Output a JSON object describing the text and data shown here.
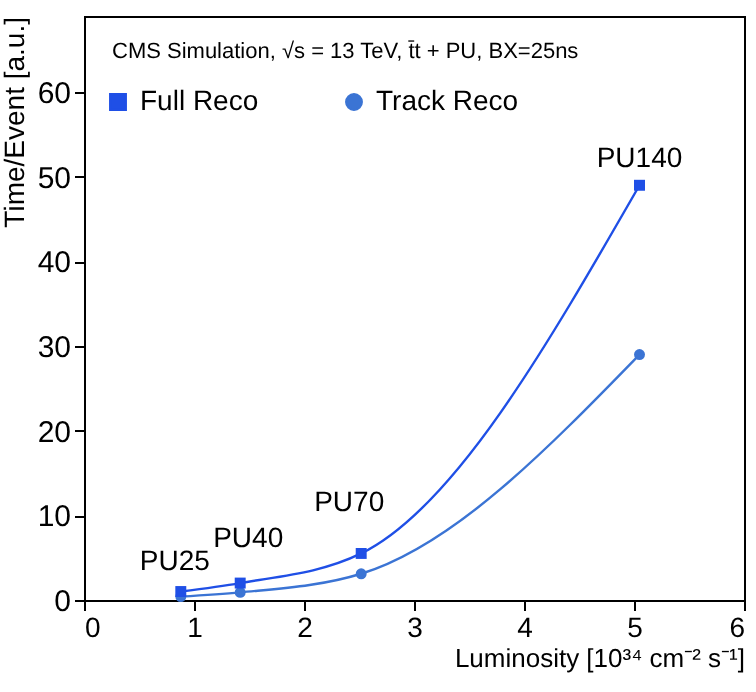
{
  "chart_data": {
    "type": "line",
    "xlabel": "Luminosity [10³⁴ cm⁻² s⁻¹]",
    "ylabel": "Time/Event [a.u.]",
    "annotations": [
      "CMS Simulation, √s = 13 TeV, t̄t + PU, BX=25ns",
      {
        "text": "PU25",
        "x": 0.88,
        "y": 1.0
      },
      {
        "text": "PU40",
        "x": 1.42,
        "y": 2.0
      },
      {
        "text": "PU70",
        "x": 2.52,
        "y": 5.5
      },
      {
        "text": "PU140",
        "x": 5.05,
        "y": 49
      }
    ],
    "x": [
      0.88,
      1.42,
      2.52,
      5.05
    ],
    "series": [
      {
        "name": "Full Reco",
        "color": "#1f4fe6",
        "marker": "square",
        "values": [
          1.0,
          2.0,
          5.5,
          49
        ]
      },
      {
        "name": "Track Reco",
        "color": "#3b74d4",
        "marker": "circle",
        "values": [
          0.4,
          0.9,
          3.1,
          29
        ]
      }
    ],
    "xlim": [
      0,
      6
    ],
    "xticks": [
      0,
      1,
      2,
      3,
      4,
      5,
      6
    ],
    "ylim": [
      0,
      69
    ],
    "yticks": [
      0,
      10,
      20,
      30,
      40,
      50,
      60
    ],
    "grid": false,
    "legend": "top left",
    "line_style": "solid"
  }
}
